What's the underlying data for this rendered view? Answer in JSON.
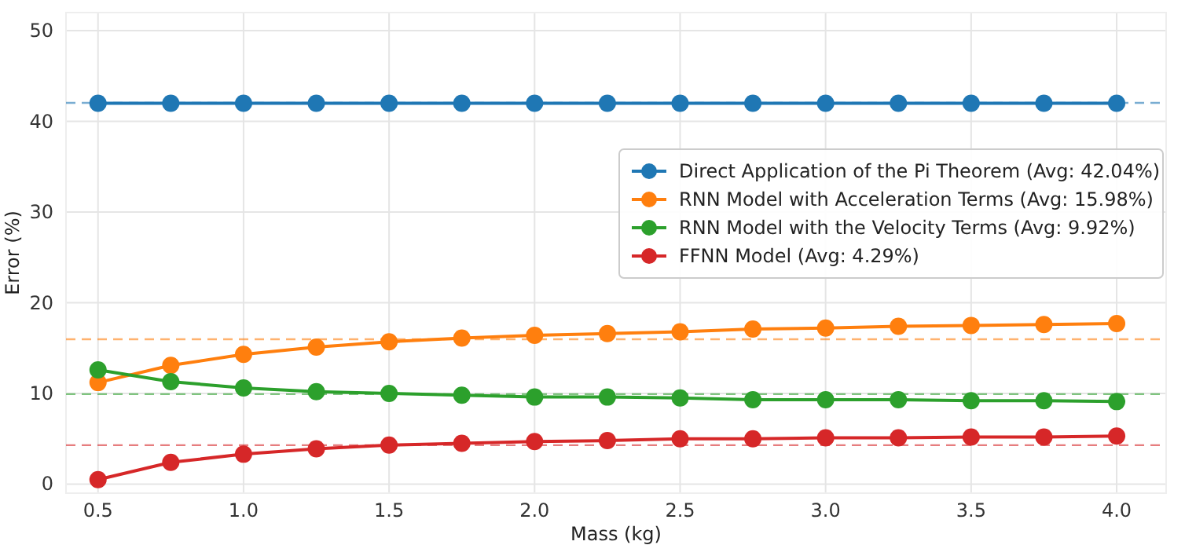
{
  "chart_data": {
    "type": "line",
    "xlabel": "Mass (kg)",
    "ylabel": "Error (%)",
    "x": [
      0.5,
      0.75,
      1.0,
      1.25,
      1.5,
      1.75,
      2.0,
      2.25,
      2.5,
      2.75,
      3.0,
      3.25,
      3.5,
      3.75,
      4.0
    ],
    "series": [
      {
        "name": "Direct Application of the Pi Theorem (Avg: 42.04%)",
        "color": "#1f77b4",
        "values": [
          42.0,
          42.0,
          42.0,
          42.0,
          42.0,
          42.0,
          42.0,
          42.0,
          42.0,
          42.0,
          42.0,
          42.0,
          42.0,
          42.0,
          42.0
        ]
      },
      {
        "name": "RNN Model with Acceleration Terms (Avg: 15.98%)",
        "color": "#ff7f0e",
        "values": [
          11.2,
          13.1,
          14.3,
          15.1,
          15.7,
          16.1,
          16.4,
          16.6,
          16.8,
          17.1,
          17.2,
          17.4,
          17.5,
          17.6,
          17.7
        ]
      },
      {
        "name": "RNN Model with the Velocity Terms (Avg: 9.92%)",
        "color": "#2ca02c",
        "values": [
          12.6,
          11.3,
          10.6,
          10.2,
          10.0,
          9.8,
          9.6,
          9.6,
          9.5,
          9.3,
          9.3,
          9.3,
          9.2,
          9.2,
          9.1
        ]
      },
      {
        "name": "FFNN Model (Avg: 4.29%)",
        "color": "#d62728",
        "values": [
          0.5,
          2.4,
          3.3,
          3.9,
          4.3,
          4.5,
          4.7,
          4.8,
          5.0,
          5.0,
          5.1,
          5.1,
          5.2,
          5.2,
          5.3
        ]
      }
    ],
    "xlim": [
      0.39,
      4.17
    ],
    "xticks": [
      {
        "value": 0.5,
        "label": "0.5"
      },
      {
        "value": 1.0,
        "label": "1.0"
      },
      {
        "value": 1.5,
        "label": "1.5"
      },
      {
        "value": 2.0,
        "label": "2.0"
      },
      {
        "value": 2.5,
        "label": "2.5"
      },
      {
        "value": 3.0,
        "label": "3.0"
      },
      {
        "value": 3.5,
        "label": "3.5"
      },
      {
        "value": 4.0,
        "label": "4.0"
      }
    ],
    "ylim": [
      -1,
      52
    ],
    "yticks": [
      0,
      10,
      20,
      30,
      40,
      50
    ],
    "ref_lines": [
      {
        "axis": "y",
        "value": 42.04,
        "color": "#1f77b4",
        "line_style": "dashed"
      },
      {
        "axis": "y",
        "value": 15.98,
        "color": "#ff7f0e",
        "line_style": "dashed"
      },
      {
        "axis": "y",
        "value": 9.92,
        "color": "#2ca02c",
        "line_style": "dashed"
      },
      {
        "axis": "y",
        "value": 4.29,
        "color": "#d62728",
        "line_style": "dashed"
      }
    ],
    "grid": true,
    "legend": "right",
    "marker": "circle",
    "line_style": "solid"
  }
}
